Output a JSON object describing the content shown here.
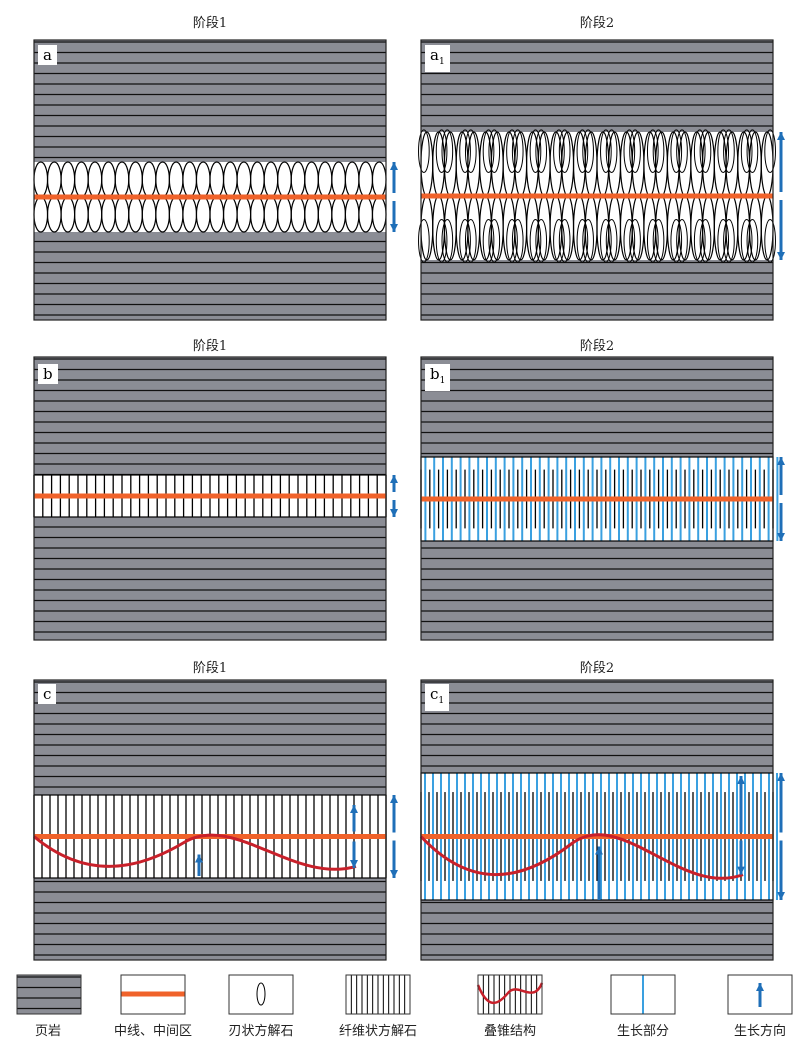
{
  "panels": [
    {
      "label": "a",
      "sub": "",
      "stage": "阶段1",
      "type": "blade"
    },
    {
      "label": "a",
      "sub": "1",
      "stage": "阶段2",
      "type": "blade"
    },
    {
      "label": "b",
      "sub": "",
      "stage": "阶段1",
      "type": "fiber"
    },
    {
      "label": "b",
      "sub": "1",
      "stage": "阶段2",
      "type": "fiber-growth"
    },
    {
      "label": "c",
      "sub": "",
      "stage": "阶段1",
      "type": "cone"
    },
    {
      "label": "c",
      "sub": "1",
      "stage": "阶段2",
      "type": "cone-growth"
    }
  ],
  "legend": [
    {
      "label": "页岩",
      "icon": "shale"
    },
    {
      "label": "中线、中间区",
      "icon": "midline"
    },
    {
      "label": "刃状方解石",
      "icon": "bladed-calcite"
    },
    {
      "label": "纤维状方解石",
      "icon": "fibrous-calcite"
    },
    {
      "label": "叠锥结构",
      "icon": "cone-in-cone"
    },
    {
      "label": "生长部分",
      "icon": "growth-part"
    },
    {
      "label": "生长方向",
      "icon": "growth-direction"
    }
  ],
  "colors": {
    "shale": "#8b8d95",
    "midline": "#f0622a",
    "growth": "#3aa0e0",
    "arrow": "#1f6fb8",
    "cone": "#c8202a"
  }
}
